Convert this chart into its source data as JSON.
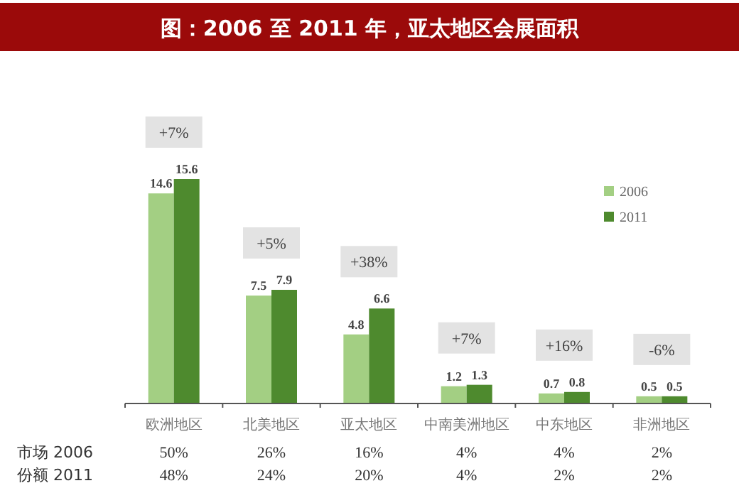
{
  "chart_data": {
    "type": "bar",
    "title": "图：2006 至 2011 年，亚太地区会展面积",
    "categories": [
      "欧洲地区",
      "北美地区",
      "亚太地区",
      "中南美洲地区",
      "中东地区",
      "非洲地区"
    ],
    "series": [
      {
        "name": "2006",
        "color": "#a3cf83",
        "values": [
          14.6,
          7.5,
          4.8,
          1.2,
          0.7,
          0.5
        ]
      },
      {
        "name": "2011",
        "color": "#4e8a2e",
        "values": [
          15.6,
          7.9,
          6.6,
          1.3,
          0.8,
          0.5
        ]
      }
    ],
    "data_labels": true,
    "legend": "top right",
    "annotations": [
      "+7%",
      "+5%",
      "+38%",
      "+7%",
      "+16%",
      "-6%",
      "市场 2006",
      "50%",
      "26%",
      "16%",
      "4%",
      "4%",
      "2%",
      "份额 2011",
      "48%",
      "24%",
      "20%",
      "4%",
      "2%",
      "2%"
    ]
  }
}
